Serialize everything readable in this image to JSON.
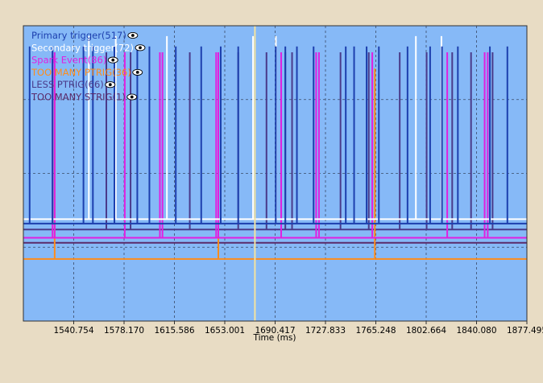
{
  "chart_data": {
    "type": "line",
    "title": "",
    "xlabel": "Time (ms)",
    "ylabel": "",
    "xlim": [
      1503.338,
      1877.495
    ],
    "grid": true,
    "legend_position": "top-left",
    "x_ticks": [
      {
        "value": 1540.754,
        "label": "1540.754"
      },
      {
        "value": 1578.17,
        "label": "1578.170"
      },
      {
        "value": 1615.586,
        "label": "1615.586"
      },
      {
        "value": 1653.001,
        "label": "1653.001"
      },
      {
        "value": 1690.417,
        "label": "1690.417"
      },
      {
        "value": 1727.833,
        "label": "1727.833"
      },
      {
        "value": 1765.248,
        "label": "1765.248"
      },
      {
        "value": 1802.664,
        "label": "1802.664"
      },
      {
        "value": 1840.08,
        "label": "1840.080"
      },
      {
        "value": 1877.495,
        "label": "1877.495"
      }
    ],
    "cursor_x": 1675.4,
    "series": [
      {
        "name": "Primary trigger(517)",
        "color": "#1c3fae",
        "baseline": 0.33,
        "pulse_top": 0.93,
        "events": [
          1508.0,
          1525.0,
          1548.0,
          1555.0,
          1571.0,
          1588.0,
          1597.0,
          1616.6,
          1635.5,
          1650.0,
          1663.0,
          1690.9,
          1698.0,
          1706.6,
          1719.0,
          1742.9,
          1749.1,
          1758.4,
          1767.5,
          1788.8,
          1805.6,
          1814.4,
          1826.2,
          1850.0,
          1863.0
        ]
      },
      {
        "name": "Secondary trigger(72)",
        "color": "#ffffff",
        "baseline": 0.345,
        "pulse_top": 0.965,
        "events": [
          1552.0,
          1572.0,
          1610.0,
          1674.0,
          1691.0,
          1795.0,
          1814.0
        ]
      },
      {
        "name": "Spark Event(86)",
        "color": "#e020e0",
        "baseline": 0.282,
        "pulse_top": 0.91,
        "events": [
          1525.0,
          1526.6,
          1578.7,
          1604.8,
          1606.7,
          1646.6,
          1648.2,
          1694.9,
          1720.9,
          1723.0,
          1762.6,
          1818.3,
          1846.1,
          1848.4
        ]
      },
      {
        "name": "TOO MANY PTRIG(36)",
        "color": "#ff8c1a",
        "baseline": 0.21,
        "pulse_top": 0.855,
        "events": [
          1526.6,
          1648.2,
          1764.5
        ]
      },
      {
        "name": "LESS PTRIG(66)",
        "color": "#4a3a8a",
        "baseline": 0.31,
        "pulse_top": 0.91,
        "events": [
          1565.0,
          1583.0,
          1627.0,
          1663.0,
          1684.0,
          1698.0,
          1703.0,
          1739.0,
          1760.0,
          1783.0,
          1803.0,
          1822.0,
          1836.0,
          1852.0
        ]
      },
      {
        "name": "TOO MANY STRIG(1)",
        "color": "#5a2a6a",
        "baseline": 0.265,
        "pulse_top": null,
        "events": []
      }
    ]
  }
}
